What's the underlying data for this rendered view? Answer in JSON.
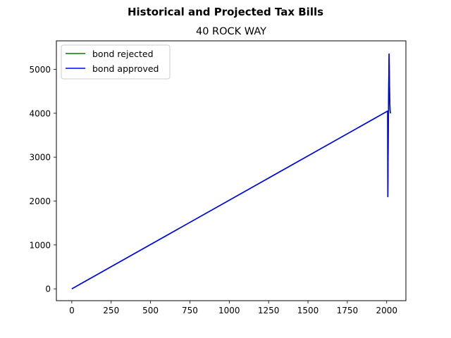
{
  "chart_data": {
    "type": "line",
    "suptitle": "Historical and Projected Tax Bills",
    "title": "40 ROCK WAY",
    "xlabel": "",
    "ylabel": "",
    "xlim": [
      -98,
      2122
    ],
    "ylim": [
      -270,
      5650
    ],
    "x_ticks": [
      0,
      250,
      500,
      750,
      1000,
      1250,
      1500,
      1750,
      2000
    ],
    "y_ticks": [
      0,
      1000,
      2000,
      3000,
      4000,
      5000
    ],
    "grid": false,
    "legend_position": "top-left",
    "series": [
      {
        "name": "bond rejected",
        "color": "#008000",
        "x": [
          0,
          2006,
          2007,
          2008,
          2009,
          2010,
          2011,
          2012,
          2013,
          2014,
          2015,
          2016,
          2017,
          2018,
          2019,
          2020,
          2021,
          2022,
          2023,
          2024
        ],
        "y": [
          0,
          4050,
          2100,
          2500,
          3000,
          3500,
          3900,
          4300,
          4700,
          5000,
          5350,
          5100,
          4850,
          4600,
          4350,
          4200,
          4100,
          4050,
          4020,
          4000
        ]
      },
      {
        "name": "bond approved",
        "color": "#0000ff",
        "x": [
          0,
          2006,
          2007,
          2008,
          2009,
          2010,
          2011,
          2012,
          2013,
          2014,
          2015,
          2016,
          2017,
          2018,
          2019,
          2020,
          2021,
          2022,
          2023,
          2024
        ],
        "y": [
          0,
          4050,
          2100,
          2500,
          3000,
          3500,
          3900,
          4300,
          4700,
          5000,
          5350,
          5100,
          4850,
          4600,
          4350,
          4200,
          4100,
          4050,
          4020,
          4000
        ]
      }
    ]
  }
}
